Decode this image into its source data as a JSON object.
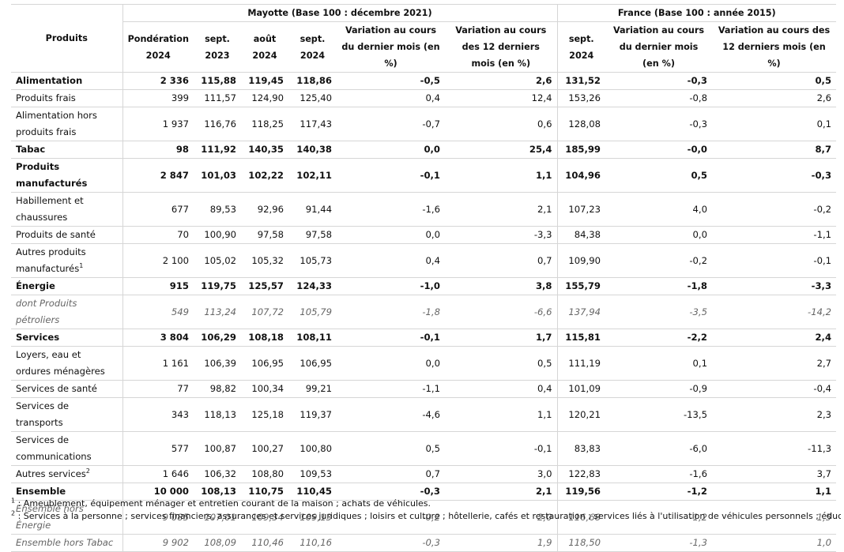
{
  "header": {
    "products": "Produits",
    "mayotte_group": "Mayotte (Base 100 : décembre 2021)",
    "france_group": "France (Base 100 : année 2015)",
    "cols": [
      "Pondération 2024",
      "sept. 2023",
      "août 2024",
      "sept. 2024",
      "Variation au cours du dernier mois (en %)",
      "Variation au cours des 12 derniers mois (en %)",
      "sept. 2024",
      "Variation au cours du dernier mois (en %)",
      "Variation au cours des 12 derniers mois (en %)"
    ]
  },
  "rows": [
    {
      "label": "Alimentation",
      "style": "bold",
      "h": 21,
      "v": [
        "2 336",
        "115,88",
        "119,45",
        "118,86",
        "-0,5",
        "2,6",
        "131,52",
        "-0,3",
        "0,5"
      ]
    },
    {
      "label": "Produits frais",
      "style": "normal",
      "h": 21,
      "v": [
        "399",
        "111,57",
        "124,90",
        "125,40",
        "0,4",
        "12,4",
        "153,26",
        "-0,8",
        "2,6"
      ]
    },
    {
      "label": "Alimentation hors produits frais",
      "style": "normal",
      "h": 42,
      "v": [
        "1 937",
        "116,76",
        "118,25",
        "117,43",
        "-0,7",
        "0,6",
        "128,08",
        "-0,3",
        "0,1"
      ]
    },
    {
      "label": "Tabac",
      "style": "bold",
      "h": 21,
      "v": [
        "98",
        "111,92",
        "140,35",
        "140,38",
        "0,0",
        "25,4",
        "185,99",
        "-0,0",
        "8,7"
      ]
    },
    {
      "label": "Produits manufacturés",
      "style": "bold",
      "h": 42,
      "v": [
        "2 847",
        "101,03",
        "102,22",
        "102,11",
        "-0,1",
        "1,1",
        "104,96",
        "0,5",
        "-0,3"
      ]
    },
    {
      "label": "Habillement et chaussures",
      "style": "normal",
      "h": 42,
      "v": [
        "677",
        "89,53",
        "92,96",
        "91,44",
        "-1,6",
        "2,1",
        "107,23",
        "4,0",
        "-0,2"
      ]
    },
    {
      "label": "Produits de santé",
      "style": "normal",
      "h": 21,
      "v": [
        "70",
        "100,90",
        "97,58",
        "97,58",
        "0,0",
        "-3,3",
        "84,38",
        "0,0",
        "-1,1"
      ]
    },
    {
      "label": "Autres produits manufacturés",
      "sup": "1",
      "style": "normal",
      "h": 42,
      "v": [
        "2 100",
        "105,02",
        "105,32",
        "105,73",
        "0,4",
        "0,7",
        "109,90",
        "-0,2",
        "-0,1"
      ]
    },
    {
      "label": "Énergie",
      "style": "bold",
      "h": 21,
      "v": [
        "915",
        "119,75",
        "125,57",
        "124,33",
        "-1,0",
        "3,8",
        "155,79",
        "-1,8",
        "-3,3"
      ]
    },
    {
      "label": "dont Produits pétroliers",
      "style": "ital",
      "h": 21,
      "v": [
        "549",
        "113,24",
        "107,72",
        "105,79",
        "-1,8",
        "-6,6",
        "137,94",
        "-3,5",
        "-14,2"
      ]
    },
    {
      "label": "Services",
      "style": "bold",
      "h": 21,
      "v": [
        "3 804",
        "106,29",
        "108,18",
        "108,11",
        "-0,1",
        "1,7",
        "115,81",
        "-2,2",
        "2,4"
      ]
    },
    {
      "label": "Loyers, eau et ordures ménagères",
      "style": "normal",
      "h": 42,
      "v": [
        "1 161",
        "106,39",
        "106,95",
        "106,95",
        "0,0",
        "0,5",
        "111,19",
        "0,1",
        "2,7"
      ]
    },
    {
      "label": "Services de santé",
      "style": "normal",
      "h": 21,
      "v": [
        "77",
        "98,82",
        "100,34",
        "99,21",
        "-1,1",
        "0,4",
        "101,09",
        "-0,9",
        "-0,4"
      ]
    },
    {
      "label": "Services de transports",
      "style": "normal",
      "h": 21,
      "v": [
        "343",
        "118,13",
        "125,18",
        "119,37",
        "-4,6",
        "1,1",
        "120,21",
        "-13,5",
        "2,3"
      ]
    },
    {
      "label": "Services de communications",
      "style": "normal",
      "h": 42,
      "v": [
        "577",
        "100,87",
        "100,27",
        "100,80",
        "0,5",
        "-0,1",
        "83,83",
        "-6,0",
        "-11,3"
      ]
    },
    {
      "label": "Autres services",
      "sup": "2",
      "style": "normal",
      "h": 21,
      "v": [
        "1 646",
        "106,32",
        "108,80",
        "109,53",
        "0,7",
        "3,0",
        "122,83",
        "-1,6",
        "3,7"
      ]
    },
    {
      "label": "Ensemble",
      "style": "bold",
      "h": 21,
      "v": [
        "10 000",
        "108,13",
        "110,75",
        "110,45",
        "-0,3",
        "2,1",
        "119,56",
        "-1,2",
        "1,1"
      ]
    },
    {
      "label": "Ensemble hors Énergie",
      "style": "ital",
      "h": 21,
      "v": [
        "9 085",
        "107,01",
        "109,34",
        "109,13",
        "-0,2",
        "2,0",
        "116,68",
        "-1,2",
        "1,5"
      ]
    },
    {
      "label": "Ensemble hors Tabac",
      "style": "ital",
      "h": 21,
      "v": [
        "9 902",
        "108,09",
        "110,46",
        "110,16",
        "-0,3",
        "1,9",
        "118,50",
        "-1,3",
        "1,0"
      ]
    }
  ],
  "notes": [
    {
      "mark": "1",
      "text": " : Ameublement, équipement ménager et entretien courant de la maison ; achats de véhicules."
    },
    {
      "mark": "2",
      "text": " : Services à la personne ; services financiers, assurances et services juridiques ; loisirs et culture ; hôtellerie, cafés et restauration ; services liés à l'utilisation de véhicules personnels ; éducation."
    }
  ]
}
